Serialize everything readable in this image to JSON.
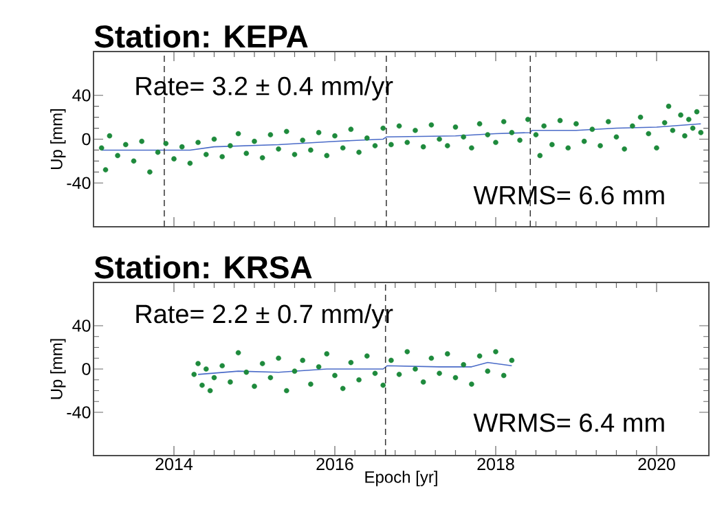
{
  "chart_data": [
    {
      "type": "scatter",
      "title": "Station: KEPA",
      "ylabel": "Up [mm]",
      "xlim": [
        2013,
        2020.65
      ],
      "ylim": [
        -80,
        80
      ],
      "xticks": [
        2014,
        2016,
        2018,
        2020
      ],
      "yticks": [
        -40,
        0,
        40
      ],
      "tick_labels": "y",
      "grid": false,
      "annotations": [
        "Rate= 3.2 ± 0.4 mm/yr",
        "WRMS= 6.6 mm"
      ],
      "ref_lines": [
        {
          "axis": "x",
          "value": 2013.88,
          "line_style": "dashed",
          "color": "#333333"
        },
        {
          "axis": "x",
          "value": 2016.64,
          "line_style": "dashed",
          "color": "#333333"
        },
        {
          "axis": "x",
          "value": 2018.43,
          "line_style": "dashed",
          "color": "#333333"
        }
      ],
      "series": [
        {
          "type": "scatter",
          "marker": "circle",
          "color": "#1e8a3c",
          "x": [
            2013.1,
            2013.15,
            2013.2,
            2013.3,
            2013.4,
            2013.5,
            2013.6,
            2013.7,
            2013.8,
            2013.9,
            2014.0,
            2014.1,
            2014.2,
            2014.3,
            2014.4,
            2014.5,
            2014.6,
            2014.7,
            2014.8,
            2014.9,
            2015.0,
            2015.1,
            2015.2,
            2015.3,
            2015.4,
            2015.5,
            2015.6,
            2015.7,
            2015.8,
            2015.9,
            2016.0,
            2016.1,
            2016.2,
            2016.3,
            2016.4,
            2016.5,
            2016.6,
            2016.7,
            2016.8,
            2016.9,
            2017.0,
            2017.1,
            2017.2,
            2017.3,
            2017.4,
            2017.5,
            2017.6,
            2017.7,
            2017.8,
            2017.9,
            2018.0,
            2018.1,
            2018.2,
            2018.3,
            2018.4,
            2018.5,
            2018.55,
            2018.6,
            2018.7,
            2018.8,
            2018.9,
            2019.0,
            2019.1,
            2019.2,
            2019.3,
            2019.4,
            2019.5,
            2019.6,
            2019.7,
            2019.8,
            2019.9,
            2020.0,
            2020.1,
            2020.15,
            2020.2,
            2020.3,
            2020.35,
            2020.4,
            2020.45,
            2020.5,
            2020.55
          ],
          "values": [
            -8,
            -28,
            3,
            -15,
            -5,
            -20,
            -2,
            -30,
            -12,
            -4,
            -18,
            -7,
            -22,
            -3,
            -14,
            0,
            -16,
            -6,
            5,
            -13,
            -2,
            -17,
            4,
            -9,
            7,
            -14,
            -1,
            -10,
            6,
            -15,
            3,
            -8,
            9,
            -12,
            1,
            -6,
            10,
            -5,
            12,
            -3,
            8,
            -7,
            13,
            0,
            -6,
            11,
            2,
            -8,
            14,
            4,
            -3,
            16,
            6,
            -1,
            18,
            4,
            -15,
            12,
            -5,
            17,
            -8,
            14,
            -2,
            9,
            -6,
            16,
            2,
            -9,
            12,
            20,
            5,
            -8,
            15,
            30,
            8,
            22,
            3,
            18,
            10,
            25,
            6
          ]
        },
        {
          "type": "line",
          "color": "#4a6bc8",
          "marker": "none",
          "x": [
            2013.1,
            2014.2,
            2014.5,
            2015.3,
            2016.0,
            2016.6,
            2016.64,
            2017.5,
            2018.0,
            2018.43,
            2018.45,
            2019.0,
            2019.5,
            2020.0,
            2020.55
          ],
          "values": [
            -10,
            -10,
            -7,
            -5,
            -2,
            0,
            2,
            3,
            5,
            6,
            8,
            8,
            10,
            11,
            14
          ]
        }
      ]
    },
    {
      "type": "scatter",
      "title": "Station: KRSA",
      "xlabel": "Epoch [yr]",
      "ylabel": "Up [mm]",
      "xlim": [
        2013,
        2020.65
      ],
      "ylim": [
        -80,
        80
      ],
      "xticks": [
        2014,
        2016,
        2018,
        2020
      ],
      "yticks": [
        -40,
        0,
        40
      ],
      "grid": false,
      "annotations": [
        "Rate= 2.2 ± 0.7 mm/yr",
        "WRMS= 6.4 mm"
      ],
      "ref_lines": [
        {
          "axis": "x",
          "value": 2016.63,
          "line_style": "dashed",
          "color": "#333333"
        }
      ],
      "series": [
        {
          "type": "scatter",
          "marker": "circle",
          "color": "#1e8a3c",
          "x": [
            2014.25,
            2014.3,
            2014.35,
            2014.4,
            2014.45,
            2014.5,
            2014.6,
            2014.7,
            2014.8,
            2014.9,
            2015.0,
            2015.1,
            2015.2,
            2015.3,
            2015.4,
            2015.5,
            2015.6,
            2015.7,
            2015.8,
            2015.9,
            2016.0,
            2016.1,
            2016.2,
            2016.3,
            2016.4,
            2016.5,
            2016.6,
            2016.7,
            2016.8,
            2016.9,
            2017.0,
            2017.1,
            2017.2,
            2017.3,
            2017.4,
            2017.5,
            2017.6,
            2017.7,
            2017.8,
            2017.9,
            2018.0,
            2018.1,
            2018.2
          ],
          "values": [
            -5,
            5,
            -15,
            0,
            -20,
            -8,
            3,
            -12,
            15,
            -3,
            -16,
            5,
            -8,
            10,
            -20,
            -2,
            8,
            -14,
            2,
            14,
            -6,
            -18,
            6,
            -10,
            12,
            -4,
            -15,
            8,
            -5,
            16,
            0,
            -12,
            10,
            -4,
            14,
            -8,
            4,
            -14,
            12,
            -2,
            16,
            -6,
            8
          ]
        },
        {
          "type": "line",
          "color": "#4a6bc8",
          "marker": "none",
          "x": [
            2014.3,
            2014.8,
            2015.3,
            2015.9,
            2016.6,
            2016.65,
            2017.3,
            2017.7,
            2017.9,
            2018.2
          ],
          "values": [
            -5,
            -2,
            -3,
            0,
            0,
            3,
            2,
            2,
            6,
            3
          ]
        }
      ]
    }
  ]
}
